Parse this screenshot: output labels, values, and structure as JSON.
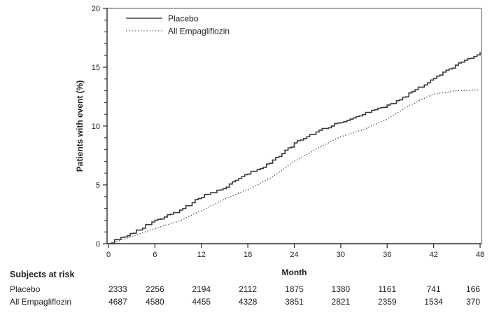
{
  "colors": {
    "text": "#222222",
    "frame": "#444444",
    "axis": "#2a2a2a",
    "placebo_curve": "#3a3a3a",
    "empagliflozin_curve": "#4a4a4a",
    "legend_solid_sample": "#757575",
    "background": "#ffffff"
  },
  "chart_data": {
    "type": "line",
    "subtype": "kaplan-meier-cumulative-incidence",
    "title": "",
    "xlabel": "Month",
    "ylabel": "Patients with event (%)",
    "xlim": [
      0,
      48
    ],
    "ylim": [
      0,
      20
    ],
    "x_ticks": [
      0,
      6,
      12,
      18,
      24,
      30,
      36,
      42,
      48
    ],
    "y_ticks": [
      0,
      5,
      10,
      15,
      20
    ],
    "y_minor_tick_step": 1,
    "grid": false,
    "frame": "full-box",
    "legend_position": "top-left-inside",
    "x": [
      0,
      3,
      6,
      9,
      12,
      15,
      18,
      21,
      24,
      27,
      30,
      33,
      36,
      39,
      42,
      45,
      48
    ],
    "series": [
      {
        "name": "Placebo",
        "line_style": "solid",
        "draw": "step-after",
        "values": [
          0,
          0.9,
          2.0,
          2.7,
          4.0,
          4.8,
          6.0,
          6.9,
          8.5,
          9.6,
          10.3,
          11.0,
          11.7,
          12.8,
          14.0,
          15.2,
          16.3
        ]
      },
      {
        "name": "All Empagliflozin",
        "line_style": "dotted",
        "draw": "line",
        "values": [
          0,
          0.6,
          1.3,
          1.9,
          2.8,
          3.8,
          4.6,
          5.6,
          7.0,
          8.1,
          9.1,
          9.7,
          10.6,
          11.8,
          12.7,
          13.0,
          13.1
        ]
      }
    ]
  },
  "risk_table": {
    "title": "Subjects at risk",
    "months": [
      0,
      6,
      12,
      18,
      24,
      30,
      36,
      42,
      48
    ],
    "rows": [
      {
        "label": "Placebo",
        "values": [
          2333,
          2256,
          2194,
          2112,
          1875,
          1380,
          1161,
          741,
          166
        ]
      },
      {
        "label": "All Empagliflozin",
        "values": [
          4687,
          4580,
          4455,
          4328,
          3851,
          2821,
          2359,
          1534,
          370
        ]
      }
    ]
  }
}
